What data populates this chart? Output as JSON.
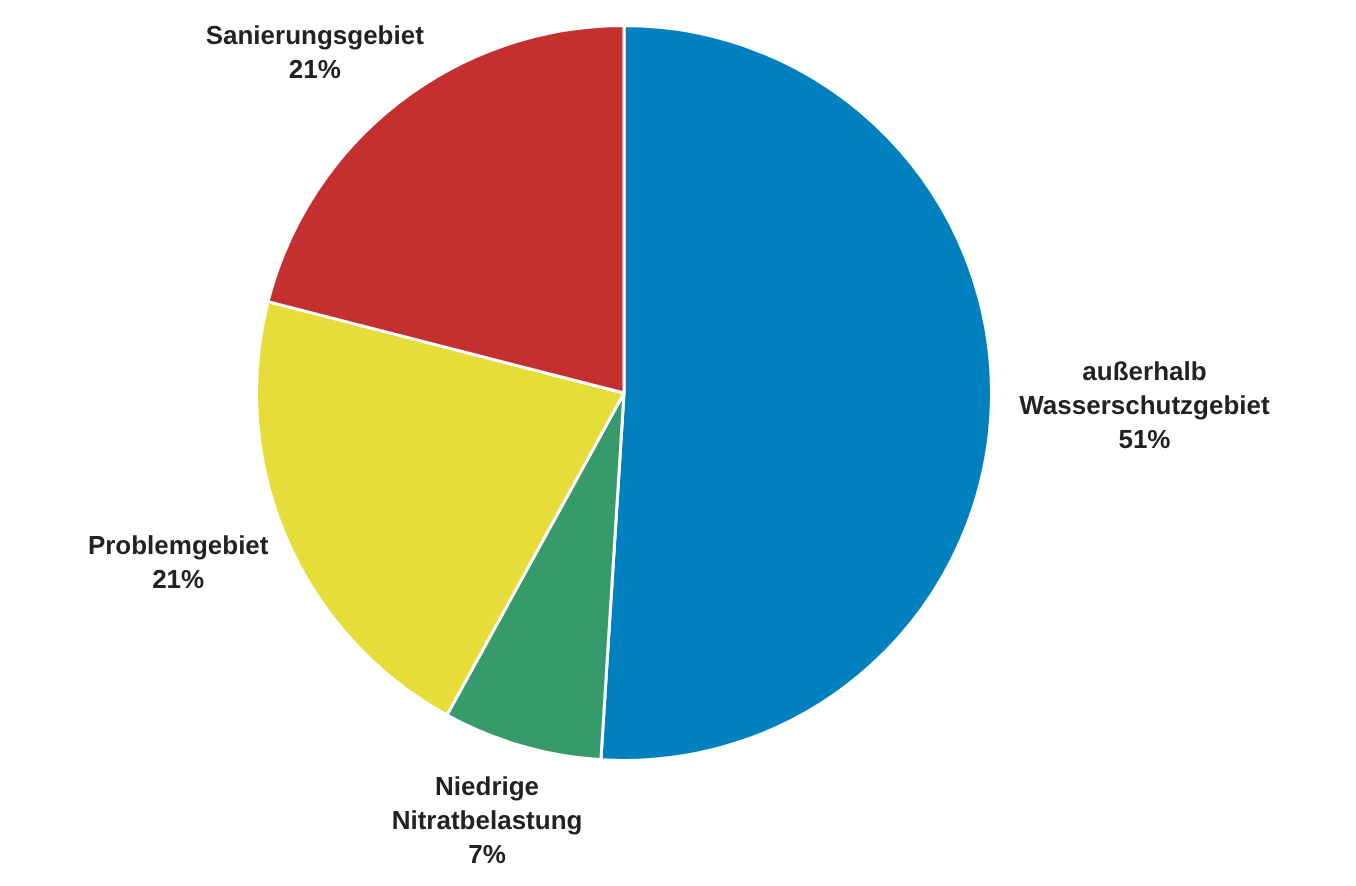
{
  "chart_data": {
    "type": "pie",
    "categories": [
      "außerhalb Wasserschutzgebiet",
      "Niedrige Nitratbelastung",
      "Problemgebiet",
      "Sanierungsgebiet"
    ],
    "values": [
      51,
      7,
      21,
      21
    ],
    "colors": [
      "#0080bf",
      "#379a6a",
      "#e6dc3a",
      "#c43030"
    ],
    "data_labels": true,
    "value_labels": [
      "51%",
      "7%",
      "21%",
      "21%"
    ],
    "legend": false
  }
}
